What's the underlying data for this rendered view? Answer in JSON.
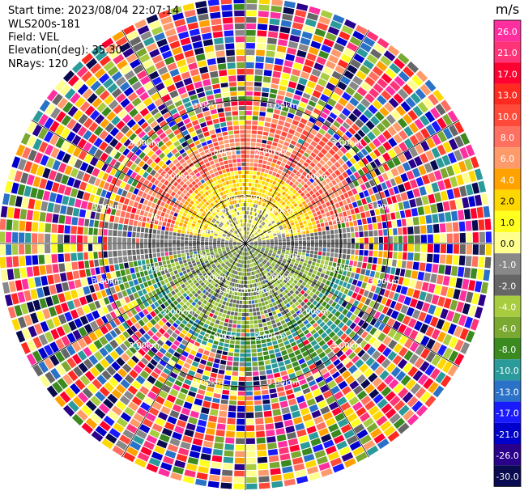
{
  "info": {
    "start_time": "Start time: 2023/08/04 22:07:14",
    "instrument": "WLS200s-181",
    "field": "Field: VEL",
    "elevation": "Elevation(deg): 35.30",
    "nrays": "NRays: 120"
  },
  "colorbar": {
    "unit": "m/s",
    "ticks": [
      "26.0",
      "21.0",
      "17.0",
      "13.0",
      "10.0",
      "8.0",
      "6.0",
      "4.0",
      "2.0",
      "1.0",
      "0.0",
      "-1.0",
      "-2.0",
      "-4.0",
      "-6.0",
      "-8.0",
      "-10.0",
      "-13.0",
      "-17.0",
      "-21.0",
      "-26.0",
      "-30.0"
    ],
    "colors": [
      "#ff2fa0",
      "#ff3377",
      "#ff0030",
      "#ff2a20",
      "#ff4a3a",
      "#ff7060",
      "#ff9a6a",
      "#ffa200",
      "#ffd700",
      "#ffff20",
      "#ffff90",
      "#888888",
      "#666666",
      "#a8cc40",
      "#7aa830",
      "#3a8a20",
      "#2a9a9a",
      "#2a72c8",
      "#1a1aff",
      "#0000cc",
      "#2a008a",
      "#0a0a50"
    ]
  },
  "chart_data": {
    "type": "heatmap",
    "subtype": "polar PPI scan",
    "field": "VEL",
    "unit": "m/s",
    "range_rings_km": [
      1.0,
      2.0,
      3.0
    ],
    "range_ring_labels": [
      "1.00km",
      "2.00km",
      "3.00km"
    ],
    "nrays": 120,
    "elevation_deg": 35.3,
    "color_scale": {
      "min": -30.0,
      "max": 26.0,
      "boundaries": [
        -30.0,
        -26.0,
        -21.0,
        -17.0,
        -13.0,
        -10.0,
        -8.0,
        -6.0,
        -4.0,
        -2.0,
        -1.0,
        0.0,
        1.0,
        2.0,
        4.0,
        6.0,
        8.0,
        10.0,
        13.0,
        17.0,
        21.0,
        26.0
      ]
    },
    "pattern": {
      "inner_north_sector": "positive 2.0 to 10.0 m/s",
      "inner_south_sector": "negative -1.0 to -8.0 m/s",
      "near_east_west_axis": "approximately 0.0 m/s",
      "outer_region": "noise (full color range)"
    }
  }
}
